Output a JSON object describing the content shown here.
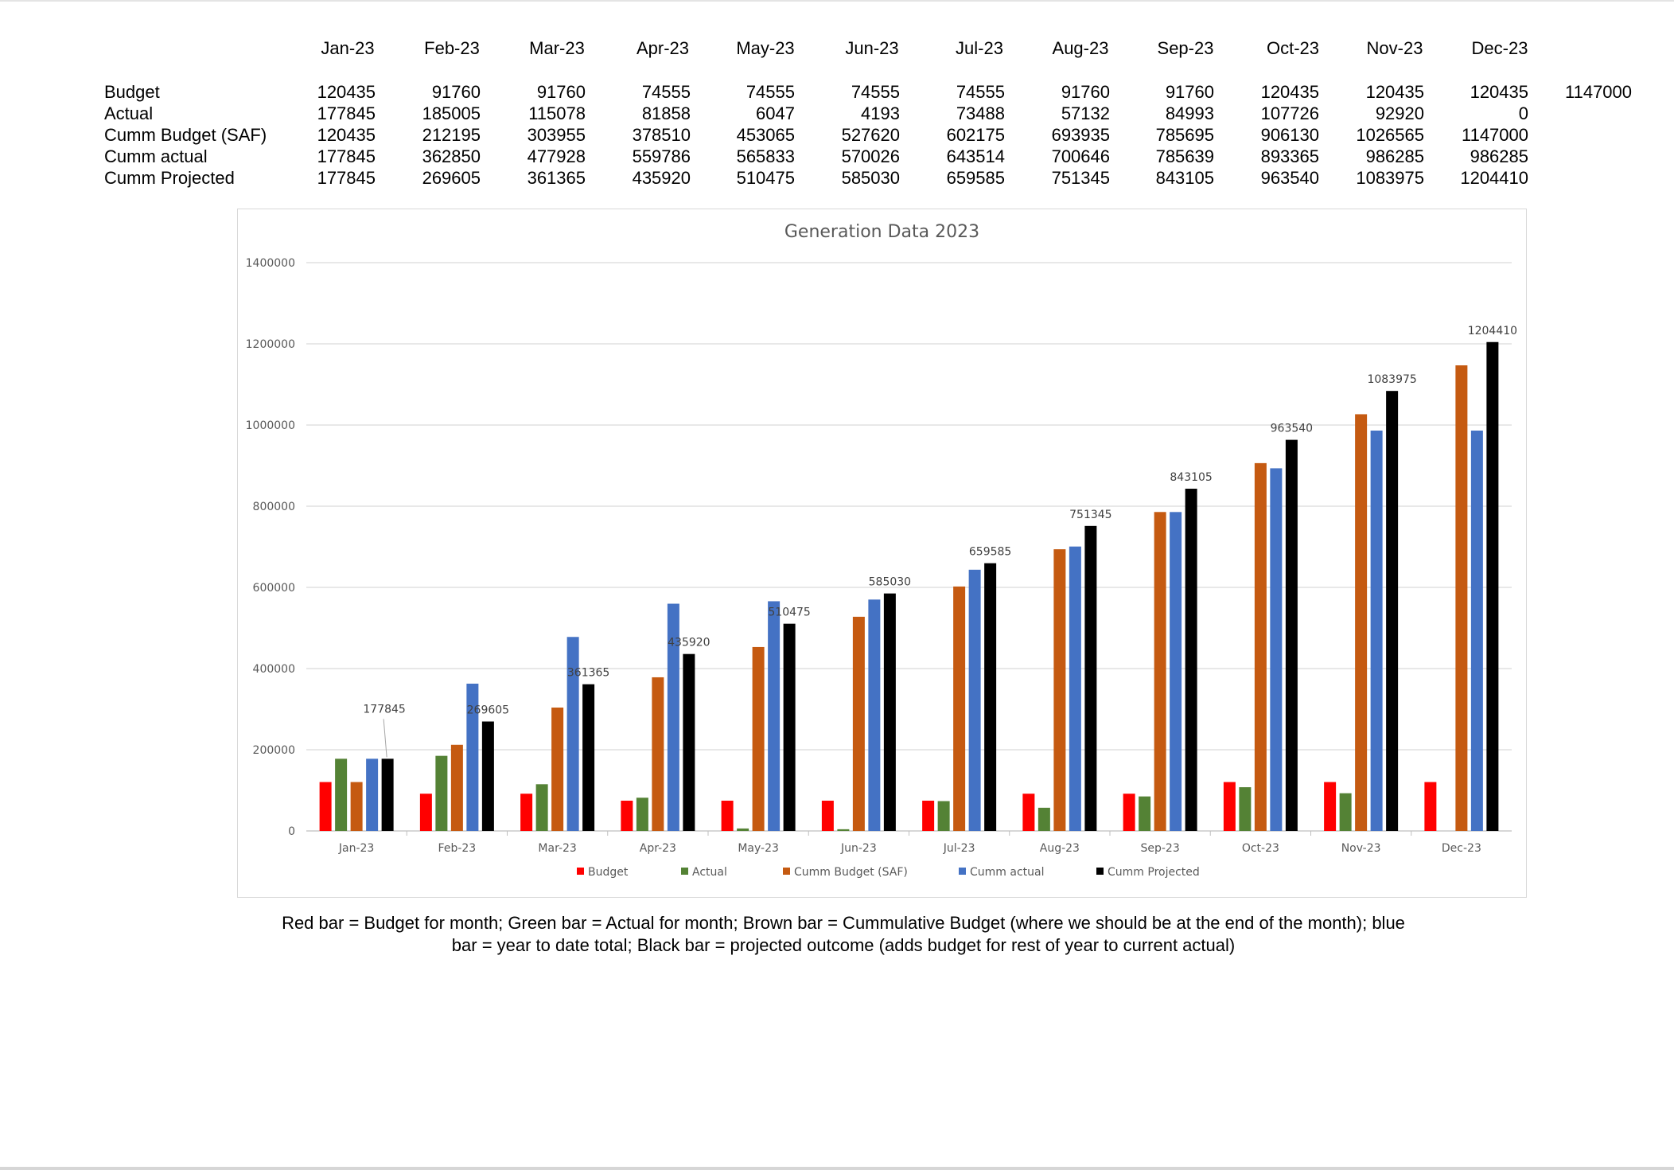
{
  "table": {
    "months": [
      "Jan-23",
      "Feb-23",
      "Mar-23",
      "Apr-23",
      "May-23",
      "Jun-23",
      "Jul-23",
      "Aug-23",
      "Sep-23",
      "Oct-23",
      "Nov-23",
      "Dec-23"
    ],
    "rows": [
      {
        "label": "Budget",
        "values": [
          "120435",
          "91760",
          "91760",
          "74555",
          "74555",
          "74555",
          "74555",
          "91760",
          "91760",
          "120435",
          "120435",
          "120435"
        ]
      },
      {
        "label": "Actual",
        "values": [
          "177845",
          "185005",
          "115078",
          "81858",
          "6047",
          "4193",
          "73488",
          "57132",
          "84993",
          "107726",
          "92920",
          "0"
        ]
      },
      {
        "label": "Cumm  Budget (SAF)",
        "values": [
          "120435",
          "212195",
          "303955",
          "378510",
          "453065",
          "527620",
          "602175",
          "693935",
          "785695",
          "906130",
          "1026565",
          "1147000"
        ]
      },
      {
        "label": "Cumm actual",
        "values": [
          "177845",
          "362850",
          "477928",
          "559786",
          "565833",
          "570026",
          "643514",
          "700646",
          "785639",
          "893365",
          "986285",
          "986285"
        ]
      },
      {
        "label": "Cumm Projected",
        "values": [
          "177845",
          "269605",
          "361365",
          "435920",
          "510475",
          "585030",
          "659585",
          "751345",
          "843105",
          "963540",
          "1083975",
          "1204410"
        ]
      }
    ],
    "budget_total": "1147000"
  },
  "chart_data": {
    "type": "bar",
    "title": "Generation Data 2023",
    "categories": [
      "Jan-23",
      "Feb-23",
      "Mar-23",
      "Apr-23",
      "May-23",
      "Jun-23",
      "Jul-23",
      "Aug-23",
      "Sep-23",
      "Oct-23",
      "Nov-23",
      "Dec-23"
    ],
    "series": [
      {
        "name": "Budget",
        "color": "#ff0000",
        "values": [
          120435,
          91760,
          91760,
          74555,
          74555,
          74555,
          74555,
          91760,
          91760,
          120435,
          120435,
          120435
        ]
      },
      {
        "name": "Actual",
        "color": "#548235",
        "values": [
          177845,
          185005,
          115078,
          81858,
          6047,
          4193,
          73488,
          57132,
          84993,
          107726,
          92920,
          0
        ]
      },
      {
        "name": "Cumm  Budget (SAF)",
        "color": "#c55a11",
        "values": [
          120435,
          212195,
          303955,
          378510,
          453065,
          527620,
          602175,
          693935,
          785695,
          906130,
          1026565,
          1147000
        ]
      },
      {
        "name": "Cumm actual",
        "color": "#4472c4",
        "values": [
          177845,
          362850,
          477928,
          559786,
          565833,
          570026,
          643514,
          700646,
          785639,
          893365,
          986285,
          986285
        ]
      },
      {
        "name": "Cumm Projected",
        "color": "#000000",
        "values": [
          177845,
          269605,
          361365,
          435920,
          510475,
          585030,
          659585,
          751345,
          843105,
          963540,
          1083975,
          1204410
        ]
      }
    ],
    "data_labels_series": "Cumm Projected",
    "ylim": [
      0,
      1400000
    ],
    "yticks": [
      0,
      200000,
      400000,
      600000,
      800000,
      1000000,
      1200000,
      1400000
    ],
    "grid": true,
    "legend_position": "bottom"
  },
  "caption": {
    "line1": "Red bar = Budget for month; Green bar = Actual for month; Brown bar = Cummulative Budget (where we should be at the end of the month); blue",
    "line2": "bar = year to date total; Black bar = projected outcome (adds budget for rest of year to current actual)"
  }
}
